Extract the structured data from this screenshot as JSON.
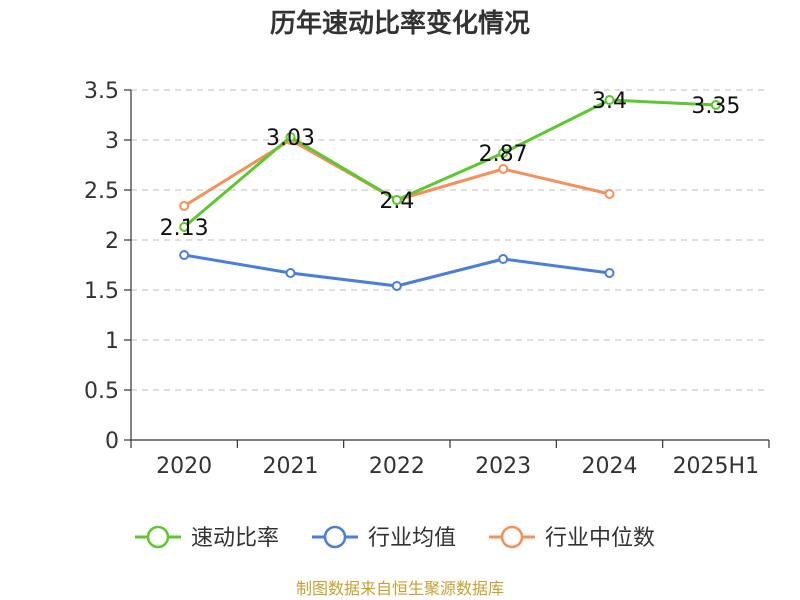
{
  "chart_data": {
    "type": "line",
    "title": "历年速动比率变化情况",
    "categories": [
      "2020",
      "2021",
      "2022",
      "2023",
      "2024",
      "2025H1"
    ],
    "ylim": [
      0,
      3.5
    ],
    "yticks": [
      "0",
      "0.5",
      "1",
      "1.5",
      "2",
      "2.5",
      "3",
      "3.5"
    ],
    "grid": true,
    "legend_position": "bottom",
    "series": [
      {
        "name": "速动比率",
        "color": "#5cc72f",
        "values": [
          2.13,
          3.03,
          2.4,
          2.87,
          3.4,
          3.35
        ],
        "labels": [
          "2.13",
          "3.03",
          "2.4",
          "2.87",
          "3.4",
          "3.35"
        ]
      },
      {
        "name": "行业均值",
        "color": "#4a7ed8",
        "values": [
          1.85,
          1.67,
          1.54,
          1.81,
          1.67,
          null
        ]
      },
      {
        "name": "行业中位数",
        "color": "#f5905a",
        "values": [
          2.34,
          3.0,
          2.4,
          2.71,
          2.46,
          null
        ]
      }
    ]
  },
  "source": "制图数据来自恒生聚源数据库",
  "source_color": "#c8a032"
}
